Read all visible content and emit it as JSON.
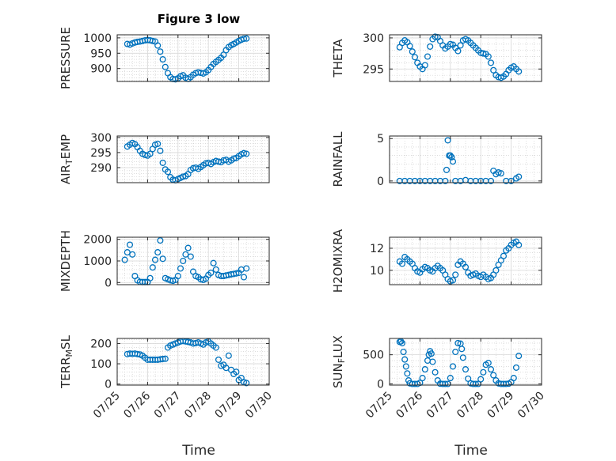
{
  "figure": {
    "title": "Figure 3 low",
    "xlabel": "Time"
  },
  "colors": {
    "marker": "#0072BD",
    "axis": "#262626",
    "grid": "#c8c8c8"
  },
  "chart_data": [
    {
      "type": "scatter",
      "ylabel": "PRESSURE",
      "xlim": [
        "07/25",
        "07/30"
      ],
      "ylim": [
        858,
        1010
      ],
      "yticks": [
        900,
        950,
        1000
      ],
      "grid": true,
      "show_xticks": false,
      "x": [
        "07/25 08:00",
        "07/25 10:00",
        "07/25 12:00",
        "07/25 14:00",
        "07/25 16:00",
        "07/25 18:00",
        "07/25 20:00",
        "07/25 22:00",
        "07/26 00:00",
        "07/26 02:00",
        "07/26 04:00",
        "07/26 06:00",
        "07/26 08:00",
        "07/26 10:00",
        "07/26 12:00",
        "07/26 14:00",
        "07/26 16:00",
        "07/26 18:00",
        "07/26 20:00",
        "07/26 22:00",
        "07/27 00:00",
        "07/27 02:00",
        "07/27 04:00",
        "07/27 06:00",
        "07/27 08:00",
        "07/27 10:00",
        "07/27 12:00",
        "07/27 14:00",
        "07/27 16:00",
        "07/27 18:00",
        "07/27 20:00",
        "07/27 22:00",
        "07/28 00:00",
        "07/28 02:00",
        "07/28 04:00",
        "07/28 06:00",
        "07/28 08:00",
        "07/28 10:00",
        "07/28 12:00",
        "07/28 14:00",
        "07/28 16:00",
        "07/28 18:00",
        "07/28 20:00",
        "07/28 22:00",
        "07/29 00:00",
        "07/29 02:00",
        "07/29 04:00",
        "07/29 06:00"
      ],
      "y": [
        980,
        978,
        982,
        985,
        987,
        988,
        990,
        992,
        993,
        992,
        990,
        988,
        975,
        955,
        930,
        905,
        885,
        872,
        866,
        865,
        868,
        875,
        878,
        870,
        866,
        872,
        880,
        885,
        888,
        886,
        884,
        888,
        895,
        905,
        915,
        922,
        928,
        935,
        945,
        960,
        970,
        976,
        980,
        985,
        990,
        994,
        997,
        998
      ]
    },
    {
      "type": "scatter",
      "ylabel": "THETA",
      "xlim": [
        "07/25",
        "07/30"
      ],
      "ylim": [
        293,
        300.5
      ],
      "yticks": [
        295,
        300
      ],
      "grid": true,
      "show_xticks": false,
      "x": [
        "07/25 08:00",
        "07/25 10:00",
        "07/25 12:00",
        "07/25 14:00",
        "07/25 16:00",
        "07/25 18:00",
        "07/25 20:00",
        "07/25 22:00",
        "07/26 00:00",
        "07/26 02:00",
        "07/26 04:00",
        "07/26 06:00",
        "07/26 08:00",
        "07/26 10:00",
        "07/26 12:00",
        "07/26 14:00",
        "07/26 16:00",
        "07/26 18:00",
        "07/26 20:00",
        "07/26 22:00",
        "07/27 00:00",
        "07/27 02:00",
        "07/27 04:00",
        "07/27 06:00",
        "07/27 08:00",
        "07/27 10:00",
        "07/27 12:00",
        "07/27 14:00",
        "07/27 16:00",
        "07/27 18:00",
        "07/27 20:00",
        "07/27 22:00",
        "07/28 00:00",
        "07/28 02:00",
        "07/28 04:00",
        "07/28 06:00",
        "07/28 08:00",
        "07/28 10:00",
        "07/28 12:00",
        "07/28 14:00",
        "07/28 16:00",
        "07/28 18:00",
        "07/28 20:00",
        "07/28 22:00",
        "07/29 00:00",
        "07/29 02:00",
        "07/29 04:00",
        "07/29 06:00"
      ],
      "y": [
        298.5,
        299.2,
        299.6,
        299.3,
        298.7,
        297.8,
        296.9,
        296.0,
        295.4,
        295.0,
        295.6,
        297.0,
        298.6,
        299.8,
        300.2,
        300.1,
        299.5,
        298.8,
        298.3,
        298.6,
        299.0,
        298.9,
        298.4,
        297.9,
        298.8,
        299.6,
        299.8,
        299.6,
        299.2,
        298.8,
        298.4,
        298.0,
        297.6,
        297.5,
        297.4,
        297.0,
        296.0,
        294.8,
        294.0,
        293.7,
        293.6,
        293.8,
        294.2,
        294.8,
        295.2,
        295.4,
        295.0,
        294.6
      ]
    },
    {
      "type": "scatter",
      "ylabel": "AIR_TEMP",
      "xlim": [
        "07/25",
        "07/30"
      ],
      "ylim": [
        285,
        300.5
      ],
      "yticks": [
        290,
        295,
        300
      ],
      "grid": true,
      "show_xticks": false,
      "x": [
        "07/25 08:00",
        "07/25 10:00",
        "07/25 12:00",
        "07/25 14:00",
        "07/25 16:00",
        "07/25 18:00",
        "07/25 20:00",
        "07/25 22:00",
        "07/26 00:00",
        "07/26 02:00",
        "07/26 04:00",
        "07/26 06:00",
        "07/26 08:00",
        "07/26 10:00",
        "07/26 12:00",
        "07/26 14:00",
        "07/26 16:00",
        "07/26 18:00",
        "07/26 20:00",
        "07/26 22:00",
        "07/27 00:00",
        "07/27 02:00",
        "07/27 04:00",
        "07/27 06:00",
        "07/27 08:00",
        "07/27 10:00",
        "07/27 12:00",
        "07/27 14:00",
        "07/27 16:00",
        "07/27 18:00",
        "07/27 20:00",
        "07/27 22:00",
        "07/28 00:00",
        "07/28 02:00",
        "07/28 04:00",
        "07/28 06:00",
        "07/28 08:00",
        "07/28 10:00",
        "07/28 12:00",
        "07/28 14:00",
        "07/28 16:00",
        "07/28 18:00",
        "07/28 20:00",
        "07/28 22:00",
        "07/29 00:00",
        "07/29 02:00",
        "07/29 04:00",
        "07/29 06:00"
      ],
      "y": [
        297.0,
        297.6,
        298.2,
        297.8,
        296.8,
        295.6,
        294.6,
        294.2,
        294.0,
        294.6,
        296.2,
        297.6,
        297.9,
        295.6,
        291.6,
        289.4,
        288.6,
        286.8,
        286.0,
        285.8,
        286.2,
        286.6,
        287.0,
        287.2,
        287.8,
        289.2,
        289.8,
        290.0,
        289.6,
        290.2,
        290.8,
        291.4,
        291.6,
        291.2,
        291.8,
        292.2,
        292.0,
        291.8,
        292.4,
        292.6,
        292.0,
        292.4,
        293.0,
        293.2,
        293.8,
        294.4,
        294.8,
        294.6
      ]
    },
    {
      "type": "scatter",
      "ylabel": "RAINFALL",
      "xlim": [
        "07/25",
        "07/30"
      ],
      "ylim": [
        -0.2,
        5.3
      ],
      "yticks": [
        0,
        5
      ],
      "grid": true,
      "show_xticks": false,
      "x": [
        "07/25 08:00",
        "07/25 12:00",
        "07/25 16:00",
        "07/25 20:00",
        "07/26 00:00",
        "07/26 04:00",
        "07/26 08:00",
        "07/26 12:00",
        "07/26 16:00",
        "07/26 20:00",
        "07/26 21:00",
        "07/26 22:00",
        "07/26 23:00",
        "07/27 00:00",
        "07/27 01:00",
        "07/27 02:00",
        "07/27 04:00",
        "07/27 08:00",
        "07/27 12:00",
        "07/27 16:00",
        "07/27 20:00",
        "07/28 00:00",
        "07/28 04:00",
        "07/28 08:00",
        "07/28 10:00",
        "07/28 12:00",
        "07/28 14:00",
        "07/28 16:00",
        "07/28 20:00",
        "07/29 00:00",
        "07/29 04:00",
        "07/29 06:00"
      ],
      "y": [
        0,
        0,
        0,
        0,
        0,
        0,
        0,
        0,
        0,
        0,
        1.3,
        4.8,
        3.0,
        3.0,
        2.8,
        2.3,
        0,
        0,
        0.1,
        0,
        0,
        0,
        0,
        0,
        1.2,
        0.8,
        1.0,
        0.9,
        0,
        0,
        0.3,
        0.5
      ]
    },
    {
      "type": "scatter",
      "ylabel": "MIXDEPTH",
      "xlim": [
        "07/25",
        "07/30"
      ],
      "ylim": [
        -100,
        2100
      ],
      "yticks": [
        0,
        1000,
        2000
      ],
      "grid": true,
      "show_xticks": false,
      "x": [
        "07/25 06:00",
        "07/25 08:00",
        "07/25 10:00",
        "07/25 12:00",
        "07/25 14:00",
        "07/25 16:00",
        "07/25 18:00",
        "07/25 20:00",
        "07/25 22:00",
        "07/26 00:00",
        "07/26 02:00",
        "07/26 04:00",
        "07/26 06:00",
        "07/26 08:00",
        "07/26 10:00",
        "07/26 12:00",
        "07/26 14:00",
        "07/26 16:00",
        "07/26 18:00",
        "07/26 20:00",
        "07/26 22:00",
        "07/27 00:00",
        "07/27 02:00",
        "07/27 04:00",
        "07/27 06:00",
        "07/27 08:00",
        "07/27 10:00",
        "07/27 12:00",
        "07/27 14:00",
        "07/27 16:00",
        "07/27 18:00",
        "07/27 20:00",
        "07/27 22:00",
        "07/28 00:00",
        "07/28 02:00",
        "07/28 04:00",
        "07/28 06:00",
        "07/28 08:00",
        "07/28 10:00",
        "07/28 12:00",
        "07/28 14:00",
        "07/28 16:00",
        "07/28 18:00",
        "07/28 20:00",
        "07/28 22:00",
        "07/29 00:00",
        "07/29 02:00",
        "07/29 04:00",
        "07/29 06:00"
      ],
      "y": [
        1050,
        1400,
        1750,
        1300,
        300,
        100,
        30,
        20,
        20,
        20,
        200,
        700,
        1050,
        1400,
        1950,
        1100,
        200,
        150,
        100,
        80,
        120,
        300,
        650,
        1000,
        1300,
        1600,
        1200,
        500,
        300,
        250,
        150,
        120,
        180,
        350,
        450,
        900,
        600,
        350,
        300,
        300,
        330,
        350,
        380,
        400,
        420,
        450,
        600,
        250,
        650
      ]
    },
    {
      "type": "scatter",
      "ylabel": "H2OMIXRA",
      "xlim": [
        "07/25",
        "07/30"
      ],
      "ylim": [
        8.7,
        13
      ],
      "yticks": [
        10,
        12
      ],
      "grid": true,
      "show_xticks": false,
      "x": [
        "07/25 08:00",
        "07/25 10:00",
        "07/25 12:00",
        "07/25 14:00",
        "07/25 16:00",
        "07/25 18:00",
        "07/25 20:00",
        "07/25 22:00",
        "07/26 00:00",
        "07/26 02:00",
        "07/26 04:00",
        "07/26 06:00",
        "07/26 08:00",
        "07/26 10:00",
        "07/26 12:00",
        "07/26 14:00",
        "07/26 16:00",
        "07/26 18:00",
        "07/26 20:00",
        "07/26 22:00",
        "07/27 00:00",
        "07/27 02:00",
        "07/27 04:00",
        "07/27 06:00",
        "07/27 08:00",
        "07/27 10:00",
        "07/27 12:00",
        "07/27 14:00",
        "07/27 16:00",
        "07/27 18:00",
        "07/27 20:00",
        "07/27 22:00",
        "07/28 00:00",
        "07/28 02:00",
        "07/28 04:00",
        "07/28 06:00",
        "07/28 08:00",
        "07/28 10:00",
        "07/28 12:00",
        "07/28 14:00",
        "07/28 16:00",
        "07/28 18:00",
        "07/28 20:00",
        "07/28 22:00",
        "07/29 00:00",
        "07/29 02:00",
        "07/29 04:00",
        "07/29 06:00"
      ],
      "y": [
        10.8,
        10.6,
        11.2,
        11.0,
        10.8,
        10.6,
        10.2,
        9.9,
        9.8,
        10.1,
        10.3,
        10.2,
        10.0,
        9.9,
        10.2,
        10.4,
        10.2,
        10.0,
        9.6,
        9.2,
        9.0,
        9.1,
        9.6,
        10.5,
        10.8,
        10.6,
        10.3,
        9.8,
        9.5,
        9.6,
        9.7,
        9.5,
        9.4,
        9.6,
        9.4,
        9.2,
        9.3,
        9.6,
        10.0,
        10.5,
        10.9,
        11.3,
        11.8,
        12.0,
        12.3,
        12.5,
        12.6,
        12.3
      ]
    },
    {
      "type": "scatter",
      "ylabel": "TERR_MSL",
      "xlim": [
        "07/25",
        "07/30"
      ],
      "ylim": [
        -5,
        225
      ],
      "yticks": [
        0,
        100,
        200
      ],
      "grid": true,
      "show_xticks": true,
      "x": [
        "07/25 08:00",
        "07/25 10:00",
        "07/25 12:00",
        "07/25 14:00",
        "07/25 16:00",
        "07/25 18:00",
        "07/25 20:00",
        "07/25 22:00",
        "07/26 00:00",
        "07/26 02:00",
        "07/26 04:00",
        "07/26 06:00",
        "07/26 08:00",
        "07/26 10:00",
        "07/26 12:00",
        "07/26 14:00",
        "07/26 16:00",
        "07/26 18:00",
        "07/26 20:00",
        "07/26 22:00",
        "07/27 00:00",
        "07/27 02:00",
        "07/27 04:00",
        "07/27 06:00",
        "07/27 08:00",
        "07/27 10:00",
        "07/27 12:00",
        "07/27 14:00",
        "07/27 16:00",
        "07/27 18:00",
        "07/27 20:00",
        "07/27 22:00",
        "07/28 00:00",
        "07/28 02:00",
        "07/28 04:00",
        "07/28 06:00",
        "07/28 08:00",
        "07/28 10:00",
        "07/28 12:00",
        "07/28 14:00",
        "07/28 16:00",
        "07/28 18:00",
        "07/28 20:00",
        "07/28 22:00",
        "07/29 00:00",
        "07/29 02:00",
        "07/29 04:00",
        "07/29 06:00"
      ],
      "y": [
        148,
        150,
        149,
        150,
        148,
        146,
        140,
        130,
        120,
        120,
        120,
        120,
        120,
        122,
        124,
        125,
        180,
        190,
        195,
        200,
        205,
        210,
        212,
        210,
        208,
        205,
        200,
        202,
        205,
        200,
        195,
        205,
        210,
        200,
        190,
        180,
        120,
        90,
        95,
        80,
        140,
        70,
        50,
        60,
        20,
        30,
        10,
        5
      ]
    },
    {
      "type": "scatter",
      "ylabel": "SUN_FLUX",
      "xlim": [
        "07/25",
        "07/30"
      ],
      "ylim": [
        -20,
        780
      ],
      "yticks": [
        0,
        500
      ],
      "grid": true,
      "show_xticks": true,
      "x": [
        "07/25 08:00",
        "07/25 09:00",
        "07/25 10:00",
        "07/25 11:00",
        "07/25 12:00",
        "07/25 13:00",
        "07/25 14:00",
        "07/25 15:00",
        "07/25 16:00",
        "07/25 18:00",
        "07/25 20:00",
        "07/25 22:00",
        "07/26 00:00",
        "07/26 02:00",
        "07/26 04:00",
        "07/26 06:00",
        "07/26 07:00",
        "07/26 08:00",
        "07/26 09:00",
        "07/26 10:00",
        "07/26 12:00",
        "07/26 14:00",
        "07/26 16:00",
        "07/26 18:00",
        "07/26 20:00",
        "07/26 22:00",
        "07/27 00:00",
        "07/27 02:00",
        "07/27 04:00",
        "07/27 06:00",
        "07/27 08:00",
        "07/27 09:00",
        "07/27 10:00",
        "07/27 12:00",
        "07/27 14:00",
        "07/27 16:00",
        "07/27 18:00",
        "07/27 20:00",
        "07/27 22:00",
        "07/28 00:00",
        "07/28 02:00",
        "07/28 04:00",
        "07/28 06:00",
        "07/28 08:00",
        "07/28 10:00",
        "07/28 12:00",
        "07/28 14:00",
        "07/28 16:00",
        "07/28 18:00",
        "07/28 20:00",
        "07/28 22:00",
        "07/29 00:00",
        "07/29 02:00",
        "07/29 04:00",
        "07/29 06:00"
      ],
      "y": [
        720,
        730,
        700,
        550,
        420,
        300,
        180,
        60,
        10,
        0,
        0,
        0,
        20,
        100,
        250,
        400,
        500,
        560,
        520,
        380,
        200,
        60,
        5,
        0,
        0,
        0,
        100,
        300,
        550,
        700,
        690,
        600,
        450,
        250,
        90,
        10,
        0,
        0,
        0,
        80,
        200,
        330,
        360,
        250,
        150,
        60,
        10,
        0,
        0,
        0,
        5,
        30,
        100,
        280,
        480
      ]
    }
  ]
}
